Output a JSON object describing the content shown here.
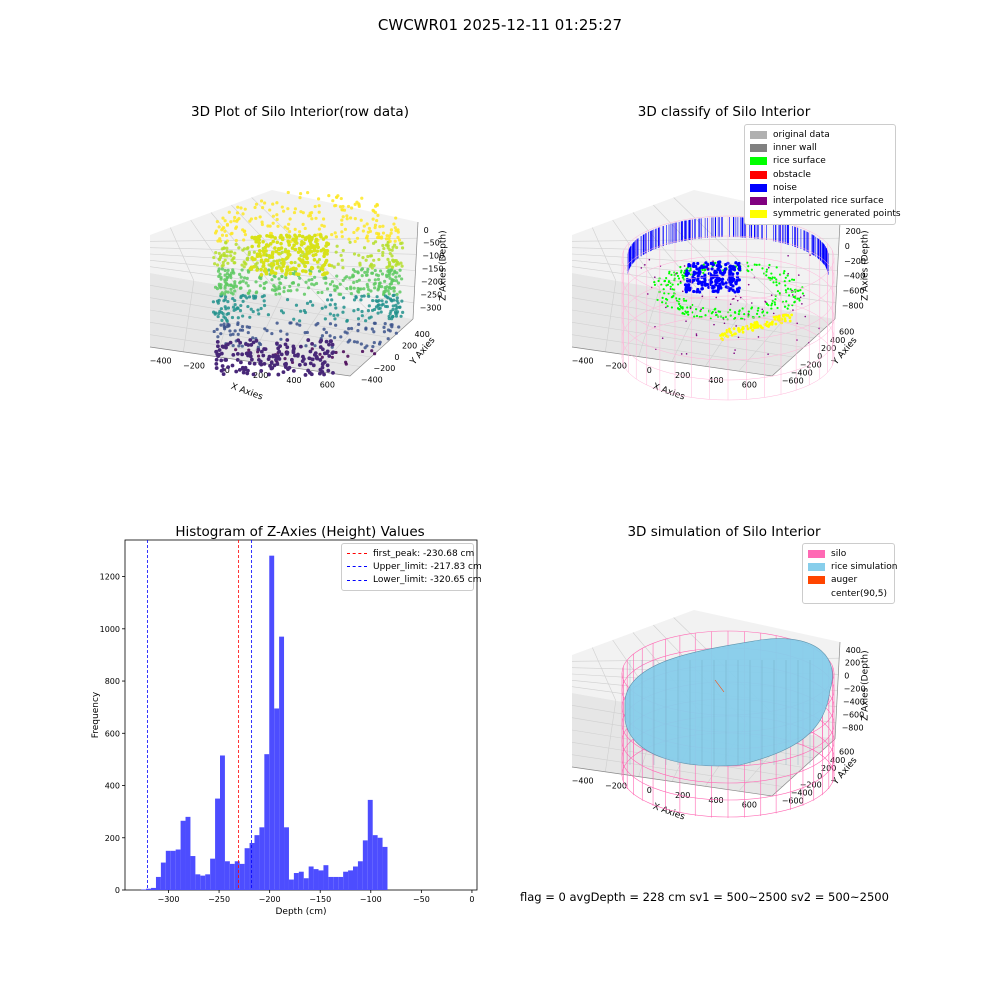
{
  "figure_title": "CWCWR01 2025-12-11 01:25:27",
  "footer_text": "flag = 0     avgDepth = 228 cm  sv1 = 500~2500  sv2 = 500~2500",
  "colors": {
    "histogram_bar": "#4d4dff",
    "first_peak_line": "#ff0000",
    "limit_lines": "#0000ff",
    "original_data": "#b0b0b0",
    "inner_wall": "#808080",
    "rice_surface": "#00ff00",
    "obstacle": "#ff0000",
    "noise": "#0000ff",
    "interpolated_rice_surface": "#800080",
    "symmetric_generated_points": "#ffff00",
    "silo": "#ff69b4",
    "rice_simulation": "#87ceeb",
    "auger": "#ff4500"
  },
  "chart_data": [
    {
      "type": "scatter",
      "projection": "3d",
      "title": "3D Plot of Silo Interior(row data)",
      "xlabel": "X Axies",
      "ylabel": "Y Axies",
      "zlabel": "Z Axies (Depth)",
      "xticks": [
        "−400",
        "−200",
        "0",
        "200",
        "400",
        "600"
      ],
      "yticks": [
        "−400",
        "−200",
        "0",
        "200",
        "400"
      ],
      "zticks": [
        "0",
        "−50",
        "−100",
        "−150",
        "−200",
        "−250",
        "−300"
      ],
      "colormap": "viridis"
    },
    {
      "type": "scatter",
      "projection": "3d",
      "title": "3D classify of Silo Interior",
      "xlabel": "X Axies",
      "ylabel": "Y Axies",
      "zlabel": "Z Axies (Depth)",
      "xticks": [
        "−400",
        "−200",
        "0",
        "200",
        "400",
        "600"
      ],
      "yticks": [
        "−600",
        "−400",
        "−200",
        "0",
        "200",
        "400",
        "600"
      ],
      "zticks": [
        "200",
        "0",
        "−200",
        "−400",
        "−600",
        "−800"
      ],
      "zticks_top_partial": "00",
      "legend": [
        {
          "label": "original data",
          "color": "#b0b0b0"
        },
        {
          "label": "inner wall",
          "color": "#808080"
        },
        {
          "label": "rice surface",
          "color": "#00ff00"
        },
        {
          "label": "obstacle",
          "color": "#ff0000"
        },
        {
          "label": "noise",
          "color": "#0000ff"
        },
        {
          "label": "interpolated rice surface",
          "color": "#800080"
        },
        {
          "label": "symmetric generated points",
          "color": "#ffff00"
        }
      ]
    },
    {
      "type": "bar",
      "title": "Histogram of Z-Axies (Height) Values",
      "xlabel": "Depth (cm)",
      "ylabel": "Frequency",
      "xlim": [
        -343,
        5
      ],
      "ylim": [
        0,
        1340
      ],
      "xticks": [
        -300,
        -250,
        -200,
        -150,
        -100,
        -50,
        0
      ],
      "xtick_labels": [
        "−300",
        "−250",
        "−200",
        "−150",
        "−100",
        "−50",
        "0"
      ],
      "yticks": [
        0,
        200,
        400,
        600,
        800,
        1000,
        1200
      ],
      "bin_start": -327,
      "bin_width": 4.87,
      "values": [
        2,
        5,
        8,
        50,
        105,
        150,
        150,
        155,
        265,
        280,
        130,
        60,
        55,
        60,
        120,
        350,
        515,
        110,
        100,
        110,
        100,
        160,
        180,
        210,
        240,
        520,
        1280,
        695,
        970,
        240,
        40,
        65,
        70,
        45,
        90,
        80,
        75,
        95,
        50,
        50,
        50,
        70,
        75,
        90,
        110,
        190,
        345,
        210,
        200,
        165
      ],
      "vlines": [
        {
          "label": "first_peak: -230.68 cm",
          "x": -230.68,
          "color": "#ff0000"
        },
        {
          "label": "Upper_limit: -217.83 cm",
          "x": -217.83,
          "color": "#0000ff"
        },
        {
          "label": "Lower_limit: -320.65 cm",
          "x": -320.65,
          "color": "#0000ff"
        }
      ],
      "legend_position": "top-right"
    },
    {
      "type": "surface",
      "projection": "3d",
      "title": "3D simulation of Silo Interior",
      "xlabel": "X Axies",
      "ylabel": "Y Axies",
      "zlabel": "Z Axies (Depth)",
      "xticks": [
        "−400",
        "−200",
        "0",
        "200",
        "400",
        "600"
      ],
      "yticks": [
        "−600",
        "−400",
        "−200",
        "0",
        "200",
        "400",
        "600"
      ],
      "zticks": [
        "400",
        "200",
        "0",
        "−200",
        "−400",
        "−600",
        "−800"
      ],
      "legend": [
        {
          "label": "silo",
          "color": "#ff69b4"
        },
        {
          "label": "rice simulation",
          "color": "#87ceeb"
        },
        {
          "label": "auger",
          "color": "#ff4500"
        },
        {
          "label": "center(90,5)",
          "color": ""
        }
      ]
    }
  ]
}
